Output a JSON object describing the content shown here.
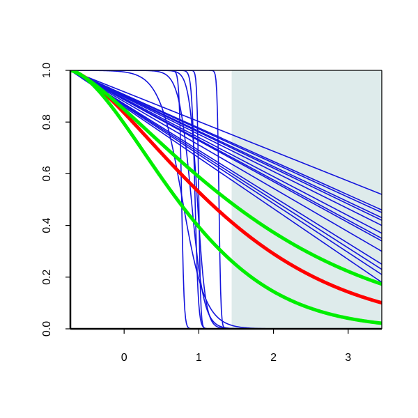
{
  "chart_data": {
    "type": "line",
    "title": "",
    "xlabel": "",
    "ylabel": "",
    "xlim": [
      -0.72,
      3.45
    ],
    "ylim": [
      0,
      1
    ],
    "x_ticks": [
      0,
      1,
      2,
      3
    ],
    "x_tick_labels": [
      "0",
      "1",
      "2",
      "3"
    ],
    "y_ticks": [
      0,
      0.2,
      0.4,
      0.6,
      0.8,
      1.0
    ],
    "y_tick_labels": [
      "0.0",
      "0.2",
      "0.4",
      "0.6",
      "0.8",
      "1.0"
    ],
    "grid": false,
    "legend": "none",
    "shaded_region": {
      "x_from": 1.44,
      "x_to": 3.45,
      "color": "#deebeb"
    },
    "series": [
      {
        "color": "#1414dc",
        "kind": "linear",
        "values_at": [
          [
            -0.72,
            1.0
          ],
          [
            3.45,
            0.52
          ]
        ]
      },
      {
        "color": "#1414dc",
        "kind": "linear",
        "values_at": [
          [
            -0.72,
            1.0
          ],
          [
            3.45,
            0.46
          ]
        ]
      },
      {
        "color": "#1414dc",
        "kind": "linear",
        "values_at": [
          [
            -0.72,
            1.0
          ],
          [
            3.45,
            0.45
          ]
        ]
      },
      {
        "color": "#1414dc",
        "kind": "linear",
        "values_at": [
          [
            -0.72,
            1.0
          ],
          [
            3.45,
            0.43
          ]
        ]
      },
      {
        "color": "#1414dc",
        "kind": "linear",
        "values_at": [
          [
            -0.72,
            1.0
          ],
          [
            3.45,
            0.42
          ]
        ]
      },
      {
        "color": "#1414dc",
        "kind": "linear",
        "values_at": [
          [
            -0.72,
            1.0
          ],
          [
            3.45,
            0.4
          ]
        ]
      },
      {
        "color": "#1414dc",
        "kind": "linear",
        "values_at": [
          [
            -0.72,
            1.0
          ],
          [
            3.45,
            0.37
          ]
        ]
      },
      {
        "color": "#1414dc",
        "kind": "linear",
        "values_at": [
          [
            -0.72,
            1.0
          ],
          [
            3.45,
            0.35
          ]
        ]
      },
      {
        "color": "#1414dc",
        "kind": "linear",
        "values_at": [
          [
            -0.72,
            1.0
          ],
          [
            3.45,
            0.34
          ]
        ]
      },
      {
        "color": "#1414dc",
        "kind": "linear",
        "values_at": [
          [
            -0.72,
            1.0
          ],
          [
            3.45,
            0.3
          ]
        ]
      },
      {
        "color": "#1414dc",
        "kind": "linear",
        "values_at": [
          [
            -0.72,
            1.0
          ],
          [
            3.45,
            0.25
          ]
        ]
      },
      {
        "color": "#1414dc",
        "kind": "linear",
        "values_at": [
          [
            -0.72,
            1.0
          ],
          [
            3.45,
            0.23
          ]
        ]
      },
      {
        "color": "#1414dc",
        "kind": "linear",
        "values_at": [
          [
            -0.72,
            1.0
          ],
          [
            3.45,
            0.21
          ]
        ]
      },
      {
        "color": "#1414dc",
        "kind": "linear",
        "values_at": [
          [
            -0.72,
            1.0
          ],
          [
            3.45,
            0.18
          ]
        ]
      },
      {
        "color": "#1414dc",
        "kind": "step",
        "center": 0.77,
        "steepness": 60,
        "max": 1.0
      },
      {
        "color": "#1414dc",
        "kind": "step",
        "center": 0.95,
        "steepness": 45,
        "max": 1.0
      },
      {
        "color": "#1414dc",
        "kind": "step",
        "center": 1.0,
        "steepness": 80,
        "max": 1.0
      },
      {
        "color": "#1414dc",
        "kind": "step",
        "center": 1.27,
        "steepness": 80,
        "max": 1.0
      },
      {
        "color": "#1414dc",
        "kind": "step",
        "center": 0.9,
        "steepness": 12,
        "max": 1.0
      },
      {
        "color": "#1414dc",
        "kind": "step",
        "center": 0.78,
        "steepness": 6.5,
        "max": 1.0
      },
      {
        "color": "#1414dc",
        "kind": "step",
        "center": 0.98,
        "steepness": 18,
        "max": 1.0
      },
      {
        "color": "#ff0000",
        "kind": "decay",
        "scale": 2.35,
        "power": 1.45,
        "width": 5
      },
      {
        "color": "#00ee00",
        "kind": "decay",
        "scale": 2.75,
        "power": 1.35,
        "width": 5
      },
      {
        "color": "#00ee00",
        "kind": "decay",
        "scale": 1.8,
        "power": 1.6,
        "width": 5
      }
    ]
  }
}
